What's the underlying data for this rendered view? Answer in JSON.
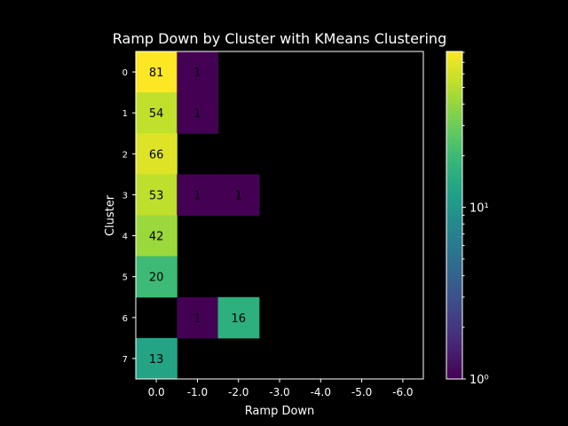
{
  "chart_data": {
    "type": "heatmap",
    "title": "Ramp Down by Cluster with KMeans Clustering",
    "xlabel": "Ramp Down",
    "ylabel": "Cluster",
    "x_categories": [
      "0.0",
      "-1.0",
      "-2.0",
      "-3.0",
      "-4.0",
      "-5.0",
      "-6.0"
    ],
    "y_categories": [
      "0",
      "1",
      "2",
      "3",
      "4",
      "5",
      "6",
      "7"
    ],
    "cells": [
      {
        "cluster": "0",
        "ramp_down": "0.0",
        "value": 81
      },
      {
        "cluster": "0",
        "ramp_down": "-1.0",
        "value": 1
      },
      {
        "cluster": "1",
        "ramp_down": "0.0",
        "value": 54
      },
      {
        "cluster": "1",
        "ramp_down": "-1.0",
        "value": 1
      },
      {
        "cluster": "2",
        "ramp_down": "0.0",
        "value": 66
      },
      {
        "cluster": "3",
        "ramp_down": "0.0",
        "value": 53
      },
      {
        "cluster": "3",
        "ramp_down": "-1.0",
        "value": 1
      },
      {
        "cluster": "3",
        "ramp_down": "-2.0",
        "value": 1
      },
      {
        "cluster": "4",
        "ramp_down": "0.0",
        "value": 42
      },
      {
        "cluster": "5",
        "ramp_down": "0.0",
        "value": 20
      },
      {
        "cluster": "6",
        "ramp_down": "-1.0",
        "value": 1
      },
      {
        "cluster": "6",
        "ramp_down": "-2.0",
        "value": 16
      },
      {
        "cluster": "7",
        "ramp_down": "0.0",
        "value": 13
      }
    ],
    "colorbar": {
      "scale": "log",
      "colormap": "viridis",
      "range": [
        1,
        81
      ],
      "tick_labels": [
        {
          "label": "10¹",
          "value": 10
        },
        {
          "label": "10⁰",
          "value": 1
        }
      ]
    },
    "grid": false,
    "background": "#000000"
  }
}
